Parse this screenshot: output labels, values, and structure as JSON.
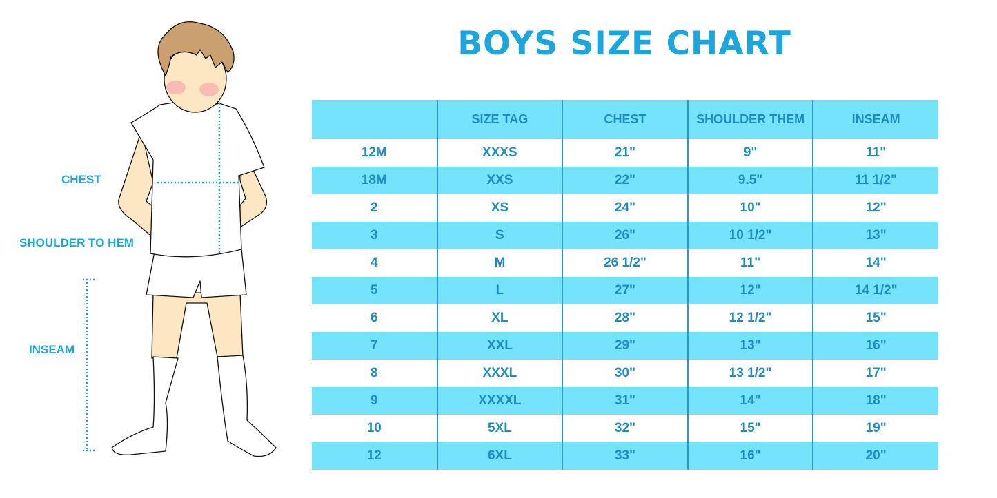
{
  "title": "BOYS SIZE CHART",
  "measure_labels": {
    "chest": "CHEST",
    "shoulder_to_hem": "SHOULDER TO HEM",
    "inseam": "INSEAM"
  },
  "colors": {
    "title": "#1ba6e0",
    "header_bg": "#75e3fc",
    "text": "#1b8dc4",
    "measure_line": "#1aa7dc",
    "hair": "#c9a06e",
    "skin": "#fde6c2"
  },
  "table": {
    "headers": [
      "",
      "SIZE TAG",
      "CHEST",
      "SHOULDER THEM",
      "INSEAM"
    ],
    "rows": [
      [
        "12M",
        "XXXS",
        "21\"",
        "9\"",
        "11\""
      ],
      [
        "18M",
        "XXS",
        "22\"",
        "9.5\"",
        "11 1/2\""
      ],
      [
        "2",
        "XS",
        "24\"",
        "10\"",
        "12\""
      ],
      [
        "3",
        "S",
        "26\"",
        "10 1/2\"",
        "13\""
      ],
      [
        "4",
        "M",
        "26 1/2\"",
        "11\"",
        "14\""
      ],
      [
        "5",
        "L",
        "27\"",
        "12\"",
        "14 1/2\""
      ],
      [
        "6",
        "XL",
        "28\"",
        "12 1/2\"",
        "15\""
      ],
      [
        "7",
        "XXL",
        "29\"",
        "13\"",
        "16\""
      ],
      [
        "8",
        "XXXL",
        "30\"",
        "13 1/2\"",
        "17\""
      ],
      [
        "9",
        "XXXXL",
        "31\"",
        "14\"",
        "18\""
      ],
      [
        "10",
        "5XL",
        "32\"",
        "15\"",
        "19\""
      ],
      [
        "12",
        "6XL",
        "33\"",
        "16\"",
        "20\""
      ]
    ]
  }
}
